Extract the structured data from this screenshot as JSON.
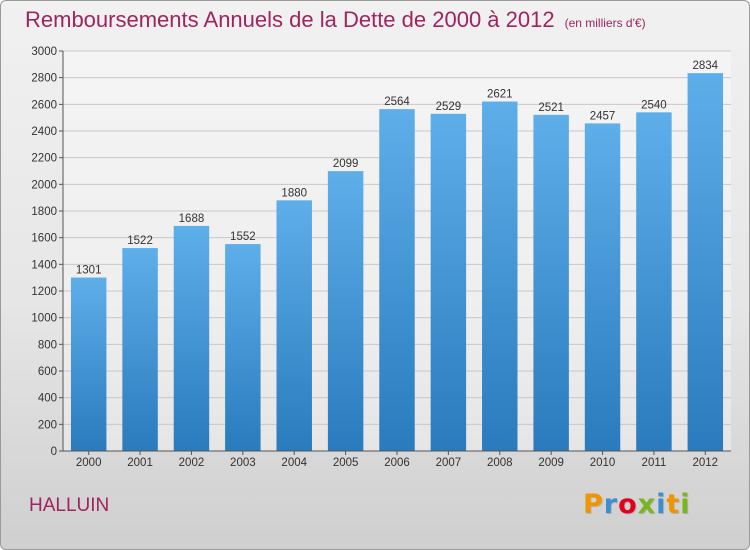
{
  "page": {
    "title": "Remboursements Annuels de la Dette de 2000 à 2012",
    "subtitle": "(en milliers d'€)",
    "city": "HALLUIN",
    "logo": {
      "text": "Proxiti",
      "colors": [
        "#f29400",
        "#3a8fd0",
        "#e2001a",
        "#7ab51d",
        "#3a8fd0",
        "#f29400",
        "#7ab51d"
      ]
    }
  },
  "chart_data": {
    "type": "bar",
    "categories": [
      "2000",
      "2001",
      "2002",
      "2003",
      "2004",
      "2005",
      "2006",
      "2007",
      "2008",
      "2009",
      "2010",
      "2011",
      "2012"
    ],
    "values": [
      1301,
      1522,
      1688,
      1552,
      1880,
      2099,
      2564,
      2529,
      2621,
      2521,
      2457,
      2540,
      2834
    ],
    "ylim": [
      0,
      3000
    ],
    "yticks": [
      0,
      200,
      400,
      600,
      800,
      1000,
      1200,
      1400,
      1600,
      1800,
      2000,
      2200,
      2400,
      2600,
      2800,
      3000
    ],
    "grid": true,
    "bar_color_top": "#5eaeea",
    "bar_color_bottom": "#2a7bbd"
  }
}
